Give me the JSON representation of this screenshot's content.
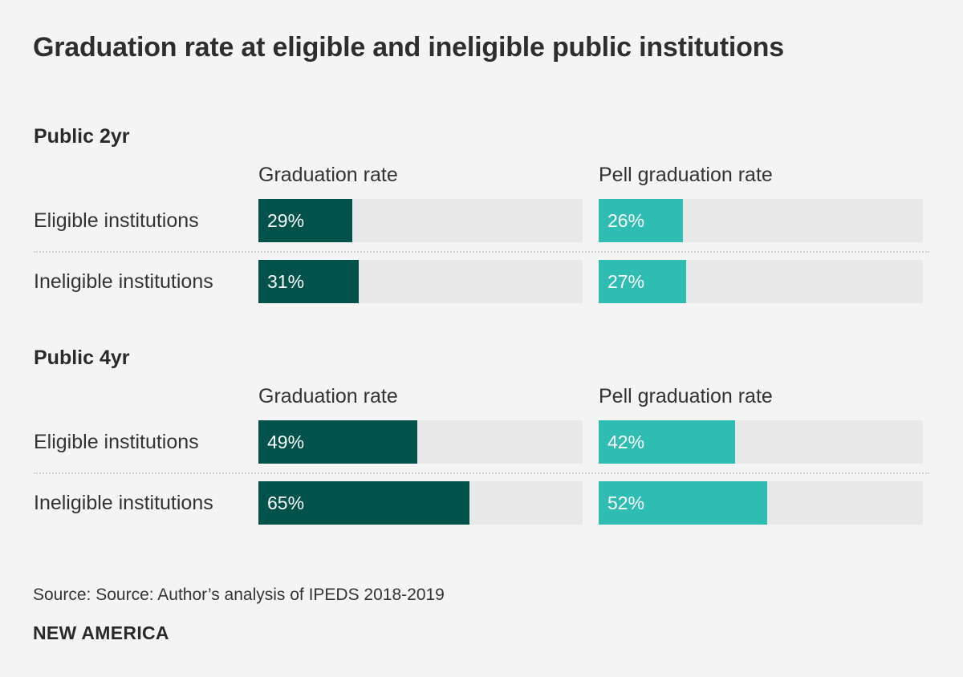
{
  "chart_data": {
    "type": "bar",
    "title": "Graduation rate at eligible and ineligible public institutions",
    "columns": [
      "Graduation rate",
      "Pell graduation rate"
    ],
    "categories": [
      "Eligible institutions",
      "Ineligible institutions"
    ],
    "xlim": [
      0,
      100
    ],
    "unit": "%",
    "colors": {
      "graduation": "#00524b",
      "pell": "#2fbdb3",
      "track": "#e8e8e8"
    },
    "panels": [
      {
        "name": "Public 2yr",
        "series": [
          {
            "name": "Graduation rate",
            "values": [
              29,
              31
            ],
            "labels": [
              "29%",
              "31%"
            ]
          },
          {
            "name": "Pell graduation rate",
            "values": [
              26,
              27
            ],
            "labels": [
              "26%",
              "27%"
            ]
          }
        ]
      },
      {
        "name": "Public 4yr",
        "series": [
          {
            "name": "Graduation rate",
            "values": [
              49,
              65
            ],
            "labels": [
              "49%",
              "65%"
            ]
          },
          {
            "name": "Pell graduation rate",
            "values": [
              42,
              52
            ],
            "labels": [
              "42%",
              "52%"
            ]
          }
        ]
      }
    ]
  },
  "footer": {
    "source": "Source: Source: Author’s analysis of IPEDS 2018-2019",
    "brand": "NEW AMERICA"
  }
}
